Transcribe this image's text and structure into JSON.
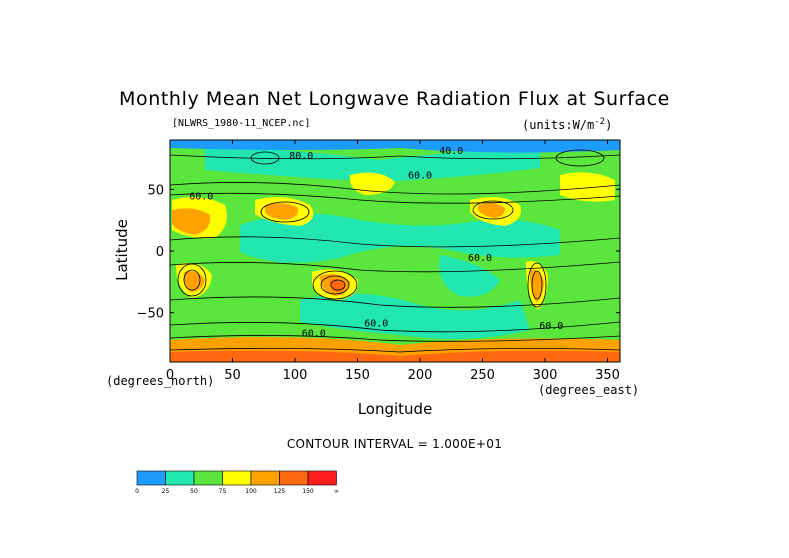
{
  "chart_data": {
    "type": "heatmap",
    "title": "Monthly Mean Net Longwave Radiation Flux at Surface",
    "file_label": "[NLWRS_1980-11_NCEP.nc]",
    "units_label": "(units:W/m^-2)",
    "xlabel": "Longitude",
    "ylabel": "Latitude",
    "x_unit_label": "(degrees_east)",
    "y_unit_label": "(degrees_north)",
    "xlim": [
      0,
      360
    ],
    "ylim": [
      -90,
      90
    ],
    "x_ticks": [
      0,
      50,
      100,
      150,
      200,
      250,
      300,
      350
    ],
    "y_ticks": [
      -50,
      0,
      50
    ],
    "contour_interval": "CONTOUR INTERVAL = 1.000E+01",
    "contour_labels": [
      {
        "text": "40.0",
        "lon": 225,
        "lat": 82
      },
      {
        "text": "80.0",
        "lon": 105,
        "lat": 78
      },
      {
        "text": "60.0",
        "lon": 200,
        "lat": 62
      },
      {
        "text": "60.0",
        "lon": 25,
        "lat": 45
      },
      {
        "text": "60.0",
        "lon": 248,
        "lat": -5
      },
      {
        "text": "60.0",
        "lon": 165,
        "lat": -58
      },
      {
        "text": "60.0",
        "lon": 305,
        "lat": -60
      },
      {
        "text": "60.0",
        "lon": 115,
        "lat": -66
      }
    ],
    "colorbar": {
      "labels": [
        "0",
        "25",
        "50",
        "75",
        "100",
        "125",
        "150",
        "∞"
      ],
      "colors": [
        "#1e9bff",
        "#22e6b0",
        "#5ae63c",
        "#ffff00",
        "#ffa200",
        "#ff6a10",
        "#ff1e1e"
      ]
    }
  }
}
